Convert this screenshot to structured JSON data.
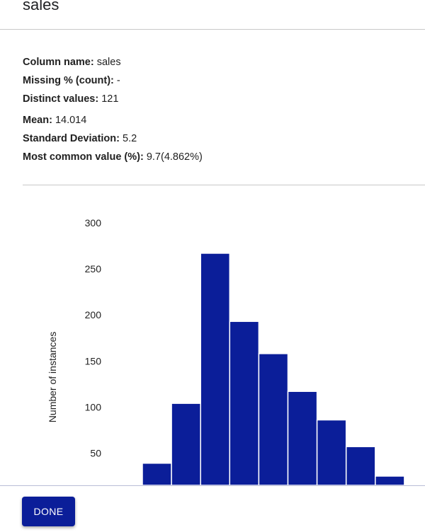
{
  "dialog": {
    "title": "sales"
  },
  "stats": [
    {
      "key": "Column name:",
      "value": "sales"
    },
    {
      "key": "Missing % (count):",
      "value": "-"
    },
    {
      "key": "Distinct values:",
      "value": "121"
    },
    {
      "key": "Mean:",
      "value": "14.014"
    },
    {
      "key": "Standard Deviation:",
      "value": "5.2"
    },
    {
      "key": "Most common value (%):",
      "value": "9.7(4.862%)"
    }
  ],
  "chart_data": {
    "type": "bar",
    "title": "",
    "xlabel": "",
    "ylabel": "Number of instances",
    "yticks": [
      50,
      100,
      150,
      200,
      250,
      300
    ],
    "ylim": [
      15,
      300
    ],
    "values": [
      39,
      104,
      267,
      193,
      158,
      117,
      86,
      57,
      25
    ],
    "bar_color": "#0b1e99",
    "grid": false
  },
  "footer": {
    "done_label": "DONE"
  }
}
